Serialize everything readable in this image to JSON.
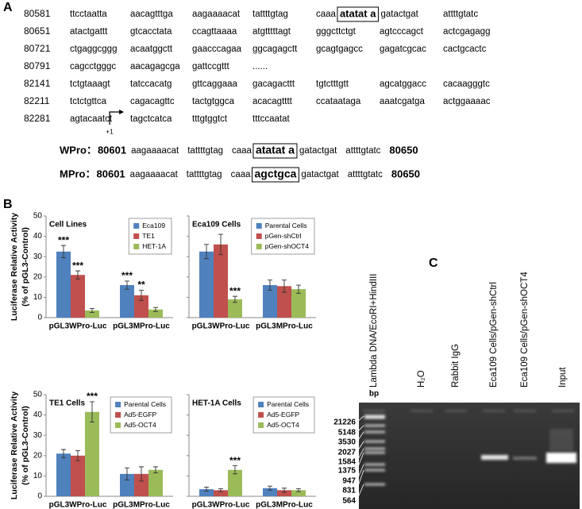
{
  "panel_labels": [
    "A",
    "B",
    "C"
  ],
  "sequence": {
    "rows": [
      {
        "number": 80581,
        "blocks": [
          "ttcctaatta",
          "aacagtttga",
          "aagaaaacat",
          "tattttgtag",
          {
            "text": "caaa",
            "boxed": "atatat a",
            "after": "gatactgat"
          },
          "attttgtatc"
        ]
      },
      {
        "number": 80651,
        "blocks": [
          "atactgattt",
          "gtcacctata",
          "ccagttaaaa",
          "atgtttttagt",
          "gggcttctgt",
          "agtcccagct",
          "actcgagagg"
        ]
      },
      {
        "number": 80721,
        "blocks": [
          "ctgaggcggg",
          "acaatggctt",
          "gaacccagaa",
          "ggcagagctt",
          "gcagtgagcc",
          "gagatcgcac",
          "cactgcactc"
        ]
      },
      {
        "number": 80791,
        "blocks": [
          "cagcctgggc",
          "aacagagcga",
          "gattccgttt",
          "......"
        ]
      },
      {
        "number": 82141,
        "blocks": [
          "tctgtaaagt",
          "tatccacatg",
          "gttcaggaaa",
          "gacagacttt",
          "tgtctttgtt",
          "agcatggacc",
          "cacaagggtc"
        ]
      },
      {
        "number": 82211,
        "blocks": [
          "tctctgttca",
          "cagacagttc",
          "tactgtggca",
          "acacagtttt",
          "ccataataga",
          "aaatcgatga",
          "actggaaaac"
        ]
      },
      {
        "number": 82281,
        "blocks": [
          "agtacaatct",
          "tagctcatca",
          "tttgtggtct",
          "tttccaatat"
        ]
      }
    ],
    "start_marker": "+1",
    "promoters": [
      {
        "name": "WPro：",
        "start": 80601,
        "blocks": [
          "aagaaaacat",
          "tattttgtag",
          {
            "text": "caaa",
            "boxed": "atatat a",
            "after": "gatactgat"
          },
          "attttgtatc"
        ],
        "end": 80650
      },
      {
        "name": "MPro：",
        "start": 80601,
        "blocks": [
          "aagaaaacat",
          "tattttgtag",
          {
            "text": "caaa",
            "boxed": "agctgca",
            "after": "gatactgat"
          },
          "attttgtatc"
        ],
        "end": 80650
      }
    ]
  },
  "chart_data": [
    {
      "type": "bar",
      "title": "Cell Lines",
      "ylabel": [
        "Luciferase Relative Activity",
        "(% of pGL3-Control)"
      ],
      "categories": [
        "pGL3WPro-Luc",
        "pGL3MPro-Luc"
      ],
      "series": [
        {
          "name": "Eca109",
          "color": "#4f81bd",
          "values": [
            32.5,
            16
          ],
          "errors": [
            3,
            2
          ],
          "labels": [
            "***",
            "***"
          ]
        },
        {
          "name": "TE1",
          "color": "#c0504d",
          "values": [
            21,
            11
          ],
          "errors": [
            2,
            2.5
          ],
          "labels": [
            "***",
            "**"
          ]
        },
        {
          "name": "HET-1A",
          "color": "#9bbb59",
          "values": [
            3.5,
            4
          ],
          "errors": [
            1,
            1
          ]
        }
      ],
      "ylim": [
        0,
        50
      ],
      "yticks": [
        0,
        10,
        20,
        30,
        40,
        50
      ],
      "ytick_labels": true,
      "legend": "upper right"
    },
    {
      "type": "bar",
      "title": "Eca109 Cells",
      "categories": [
        "pGL3WPro-Luc",
        "pGL3MPro-Luc"
      ],
      "series": [
        {
          "name": "Parental Cells",
          "color": "#4f81bd",
          "values": [
            32.5,
            16
          ],
          "errors": [
            3.5,
            2.5
          ]
        },
        {
          "name": "pGen-shCtrl",
          "color": "#c0504d",
          "values": [
            36,
            15.5
          ],
          "errors": [
            5,
            3
          ]
        },
        {
          "name": "pGen-shOCT4",
          "color": "#9bbb59",
          "values": [
            9,
            14
          ],
          "errors": [
            1.5,
            2
          ],
          "labels": [
            "***",
            null
          ]
        }
      ],
      "ylim": [
        0,
        50
      ],
      "yticks": [
        0,
        10,
        20,
        30,
        40,
        50
      ],
      "ytick_labels": false,
      "legend": "upper right"
    },
    {
      "type": "bar",
      "title": "TE1 Cells",
      "ylabel": [
        "Luciferase Relative Activity",
        "(% of pGL3-Control)"
      ],
      "categories": [
        "pGL3WPro-Luc",
        "pGL3MPro-Luc"
      ],
      "series": [
        {
          "name": "Parental Cells",
          "color": "#4f81bd",
          "values": [
            21,
            11
          ],
          "errors": [
            2,
            3
          ]
        },
        {
          "name": "Ad5-EGFP",
          "color": "#c0504d",
          "values": [
            20,
            11
          ],
          "errors": [
            2.5,
            3.5
          ]
        },
        {
          "name": "Ad5-OCT4",
          "color": "#9bbb59",
          "values": [
            41.5,
            13
          ],
          "errors": [
            5,
            1.5
          ],
          "labels": [
            "***",
            null
          ]
        }
      ],
      "ylim": [
        0,
        50
      ],
      "yticks": [
        0,
        10,
        20,
        30,
        40,
        50
      ],
      "ytick_labels": true,
      "legend": "upper right"
    },
    {
      "type": "bar",
      "title": "HET-1A Cells",
      "categories": [
        "pGL3WPro-Luc",
        "pGL3MPro-Luc"
      ],
      "series": [
        {
          "name": "Parental Cells",
          "color": "#4f81bd",
          "values": [
            3.5,
            4
          ],
          "errors": [
            1,
            1
          ]
        },
        {
          "name": "Ad5-EGFP",
          "color": "#c0504d",
          "values": [
            3,
            3
          ],
          "errors": [
            0.7,
            1
          ]
        },
        {
          "name": "Ad5-OCT4",
          "color": "#9bbb59",
          "values": [
            13,
            3
          ],
          "errors": [
            2,
            0.7
          ],
          "labels": [
            "***",
            null
          ]
        }
      ],
      "ylim": [
        0,
        50
      ],
      "yticks": [
        0,
        10,
        20,
        30,
        40,
        50
      ],
      "ytick_labels": false,
      "legend": "upper right"
    }
  ],
  "gel": {
    "lanes": [
      "Lambda DNA/EcoRI+HindIII",
      "H₂O",
      "Rabbit IgG",
      "Eca109 Cells/pGen-shCtrl",
      "Eca109 Cells/pGen-shOCT4",
      "Input"
    ],
    "unit": "bp",
    "markers": [
      21226,
      5148,
      3530,
      2027,
      1584,
      1375,
      947,
      831,
      564
    ]
  }
}
